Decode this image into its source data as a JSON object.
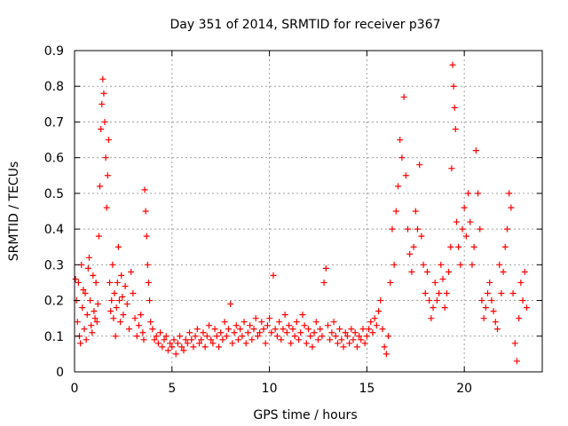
{
  "chart_data": {
    "type": "scatter",
    "title": "Day 351 of 2014, SRMTID for receiver p367",
    "xlabel": "GPS time / hours",
    "ylabel": "SRMTID / TECUs",
    "xlim": [
      0,
      24
    ],
    "ylim": [
      0,
      0.9
    ],
    "xticks": [
      0,
      5,
      10,
      15,
      20
    ],
    "yticks": [
      0,
      0.1,
      0.2,
      0.3,
      0.4,
      0.5,
      0.6,
      0.7,
      0.8,
      0.9
    ],
    "xtick_labels": [
      "0",
      "5",
      "10",
      "15",
      "20"
    ],
    "ytick_labels": [
      "0",
      "0.1",
      "0.2",
      "0.3",
      "0.4",
      "0.5",
      "0.6",
      "0.7",
      "0.8",
      "0.9"
    ],
    "grid": true,
    "marker": "+",
    "series": [
      {
        "name": "p367",
        "color": "#ff0000",
        "points": [
          [
            0.05,
            0.26
          ],
          [
            0.1,
            0.2
          ],
          [
            0.15,
            0.14
          ],
          [
            0.2,
            0.25
          ],
          [
            0.25,
            0.1
          ],
          [
            0.3,
            0.08
          ],
          [
            0.35,
            0.3
          ],
          [
            0.4,
            0.18
          ],
          [
            0.45,
            0.23
          ],
          [
            0.5,
            0.12
          ],
          [
            0.55,
            0.22
          ],
          [
            0.6,
            0.09
          ],
          [
            0.65,
            0.16
          ],
          [
            0.7,
            0.29
          ],
          [
            0.75,
            0.32
          ],
          [
            0.8,
            0.2
          ],
          [
            0.85,
            0.13
          ],
          [
            0.9,
            0.11
          ],
          [
            0.95,
            0.27
          ],
          [
            1.0,
            0.17
          ],
          [
            1.05,
            0.15
          ],
          [
            1.1,
            0.25
          ],
          [
            1.15,
            0.14
          ],
          [
            1.2,
            0.19
          ],
          [
            1.25,
            0.38
          ],
          [
            1.3,
            0.52
          ],
          [
            1.35,
            0.68
          ],
          [
            1.4,
            0.75
          ],
          [
            1.45,
            0.82
          ],
          [
            1.5,
            0.78
          ],
          [
            1.55,
            0.7
          ],
          [
            1.6,
            0.6
          ],
          [
            1.65,
            0.46
          ],
          [
            1.7,
            0.55
          ],
          [
            1.75,
            0.65
          ],
          [
            1.8,
            0.25
          ],
          [
            1.85,
            0.17
          ],
          [
            1.9,
            0.2
          ],
          [
            1.95,
            0.3
          ],
          [
            2.0,
            0.15
          ],
          [
            2.05,
            0.22
          ],
          [
            2.1,
            0.1
          ],
          [
            2.15,
            0.18
          ],
          [
            2.2,
            0.25
          ],
          [
            2.25,
            0.35
          ],
          [
            2.3,
            0.2
          ],
          [
            2.35,
            0.14
          ],
          [
            2.4,
            0.27
          ],
          [
            2.45,
            0.21
          ],
          [
            2.5,
            0.16
          ],
          [
            2.6,
            0.24
          ],
          [
            2.7,
            0.19
          ],
          [
            2.8,
            0.12
          ],
          [
            2.9,
            0.28
          ],
          [
            3.0,
            0.22
          ],
          [
            3.1,
            0.15
          ],
          [
            3.2,
            0.1
          ],
          [
            3.3,
            0.13
          ],
          [
            3.4,
            0.16
          ],
          [
            3.5,
            0.11
          ],
          [
            3.55,
            0.09
          ],
          [
            3.6,
            0.51
          ],
          [
            3.65,
            0.45
          ],
          [
            3.7,
            0.38
          ],
          [
            3.75,
            0.3
          ],
          [
            3.8,
            0.25
          ],
          [
            3.85,
            0.2
          ],
          [
            3.9,
            0.14
          ],
          [
            4.0,
            0.12
          ],
          [
            4.1,
            0.09
          ],
          [
            4.2,
            0.1
          ],
          [
            4.3,
            0.08
          ],
          [
            4.4,
            0.11
          ],
          [
            4.5,
            0.07
          ],
          [
            4.6,
            0.09
          ],
          [
            4.7,
            0.1
          ],
          [
            4.8,
            0.06
          ],
          [
            4.9,
            0.08
          ],
          [
            5.0,
            0.07
          ],
          [
            5.1,
            0.09
          ],
          [
            5.2,
            0.05
          ],
          [
            5.3,
            0.08
          ],
          [
            5.4,
            0.1
          ],
          [
            5.5,
            0.07
          ],
          [
            5.6,
            0.06
          ],
          [
            5.7,
            0.09
          ],
          [
            5.8,
            0.08
          ],
          [
            5.9,
            0.11
          ],
          [
            6.0,
            0.09
          ],
          [
            6.1,
            0.07
          ],
          [
            6.2,
            0.1
          ],
          [
            6.3,
            0.12
          ],
          [
            6.4,
            0.08
          ],
          [
            6.5,
            0.09
          ],
          [
            6.6,
            0.11
          ],
          [
            6.7,
            0.07
          ],
          [
            6.8,
            0.1
          ],
          [
            6.9,
            0.13
          ],
          [
            7.0,
            0.09
          ],
          [
            7.1,
            0.08
          ],
          [
            7.2,
            0.12
          ],
          [
            7.3,
            0.1
          ],
          [
            7.4,
            0.07
          ],
          [
            7.5,
            0.11
          ],
          [
            7.6,
            0.09
          ],
          [
            7.7,
            0.14
          ],
          [
            7.8,
            0.1
          ],
          [
            7.9,
            0.12
          ],
          [
            8.0,
            0.19
          ],
          [
            8.1,
            0.08
          ],
          [
            8.2,
            0.11
          ],
          [
            8.3,
            0.13
          ],
          [
            8.4,
            0.09
          ],
          [
            8.5,
            0.12
          ],
          [
            8.6,
            0.1
          ],
          [
            8.7,
            0.14
          ],
          [
            8.8,
            0.08
          ],
          [
            8.9,
            0.11
          ],
          [
            9.0,
            0.13
          ],
          [
            9.1,
            0.09
          ],
          [
            9.2,
            0.12
          ],
          [
            9.3,
            0.15
          ],
          [
            9.4,
            0.1
          ],
          [
            9.5,
            0.11
          ],
          [
            9.6,
            0.14
          ],
          [
            9.7,
            0.12
          ],
          [
            9.8,
            0.08
          ],
          [
            9.9,
            0.13
          ],
          [
            10.0,
            0.15
          ],
          [
            10.1,
            0.11
          ],
          [
            10.2,
            0.27
          ],
          [
            10.3,
            0.12
          ],
          [
            10.4,
            0.1
          ],
          [
            10.5,
            0.14
          ],
          [
            10.6,
            0.09
          ],
          [
            10.7,
            0.12
          ],
          [
            10.8,
            0.16
          ],
          [
            10.9,
            0.11
          ],
          [
            11.0,
            0.13
          ],
          [
            11.1,
            0.08
          ],
          [
            11.2,
            0.12
          ],
          [
            11.3,
            0.1
          ],
          [
            11.4,
            0.14
          ],
          [
            11.5,
            0.09
          ],
          [
            11.6,
            0.11
          ],
          [
            11.7,
            0.16
          ],
          [
            11.8,
            0.13
          ],
          [
            11.9,
            0.08
          ],
          [
            12.0,
            0.12
          ],
          [
            12.1,
            0.1
          ],
          [
            12.2,
            0.07
          ],
          [
            12.3,
            0.11
          ],
          [
            12.4,
            0.14
          ],
          [
            12.5,
            0.09
          ],
          [
            12.6,
            0.12
          ],
          [
            12.7,
            0.1
          ],
          [
            12.8,
            0.25
          ],
          [
            12.9,
            0.29
          ],
          [
            13.0,
            0.13
          ],
          [
            13.1,
            0.09
          ],
          [
            13.2,
            0.11
          ],
          [
            13.3,
            0.14
          ],
          [
            13.4,
            0.1
          ],
          [
            13.5,
            0.08
          ],
          [
            13.6,
            0.12
          ],
          [
            13.7,
            0.09
          ],
          [
            13.8,
            0.07
          ],
          [
            13.9,
            0.11
          ],
          [
            14.0,
            0.1
          ],
          [
            14.1,
            0.08
          ],
          [
            14.2,
            0.12
          ],
          [
            14.3,
            0.09
          ],
          [
            14.4,
            0.11
          ],
          [
            14.5,
            0.07
          ],
          [
            14.6,
            0.1
          ],
          [
            14.7,
            0.09
          ],
          [
            14.8,
            0.12
          ],
          [
            14.9,
            0.08
          ],
          [
            15.0,
            0.1
          ],
          [
            15.1,
            0.12
          ],
          [
            15.2,
            0.14
          ],
          [
            15.3,
            0.11
          ],
          [
            15.4,
            0.15
          ],
          [
            15.5,
            0.13
          ],
          [
            15.6,
            0.17
          ],
          [
            15.7,
            0.2
          ],
          [
            15.8,
            0.12
          ],
          [
            15.9,
            0.07
          ],
          [
            16.0,
            0.05
          ],
          [
            16.1,
            0.1
          ],
          [
            16.2,
            0.25
          ],
          [
            16.3,
            0.4
          ],
          [
            16.4,
            0.3
          ],
          [
            16.5,
            0.45
          ],
          [
            16.6,
            0.52
          ],
          [
            16.7,
            0.65
          ],
          [
            16.8,
            0.6
          ],
          [
            16.9,
            0.77
          ],
          [
            17.0,
            0.55
          ],
          [
            17.1,
            0.4
          ],
          [
            17.2,
            0.33
          ],
          [
            17.3,
            0.28
          ],
          [
            17.4,
            0.35
          ],
          [
            17.5,
            0.45
          ],
          [
            17.6,
            0.4
          ],
          [
            17.7,
            0.58
          ],
          [
            17.8,
            0.38
          ],
          [
            17.9,
            0.3
          ],
          [
            18.0,
            0.22
          ],
          [
            18.1,
            0.28
          ],
          [
            18.2,
            0.2
          ],
          [
            18.3,
            0.15
          ],
          [
            18.4,
            0.18
          ],
          [
            18.5,
            0.25
          ],
          [
            18.6,
            0.2
          ],
          [
            18.7,
            0.22
          ],
          [
            18.8,
            0.3
          ],
          [
            18.9,
            0.26
          ],
          [
            19.0,
            0.18
          ],
          [
            19.1,
            0.22
          ],
          [
            19.2,
            0.28
          ],
          [
            19.3,
            0.35
          ],
          [
            19.35,
            0.57
          ],
          [
            19.4,
            0.86
          ],
          [
            19.45,
            0.8
          ],
          [
            19.5,
            0.74
          ],
          [
            19.55,
            0.68
          ],
          [
            19.6,
            0.42
          ],
          [
            19.7,
            0.35
          ],
          [
            19.8,
            0.3
          ],
          [
            19.9,
            0.4
          ],
          [
            20.0,
            0.46
          ],
          [
            20.1,
            0.38
          ],
          [
            20.2,
            0.5
          ],
          [
            20.3,
            0.42
          ],
          [
            20.4,
            0.3
          ],
          [
            20.5,
            0.35
          ],
          [
            20.6,
            0.62
          ],
          [
            20.7,
            0.5
          ],
          [
            20.8,
            0.4
          ],
          [
            20.9,
            0.2
          ],
          [
            21.0,
            0.15
          ],
          [
            21.1,
            0.18
          ],
          [
            21.2,
            0.22
          ],
          [
            21.3,
            0.25
          ],
          [
            21.4,
            0.2
          ],
          [
            21.5,
            0.17
          ],
          [
            21.6,
            0.14
          ],
          [
            21.7,
            0.12
          ],
          [
            21.8,
            0.3
          ],
          [
            21.9,
            0.22
          ],
          [
            22.0,
            0.28
          ],
          [
            22.1,
            0.35
          ],
          [
            22.2,
            0.4
          ],
          [
            22.3,
            0.5
          ],
          [
            22.4,
            0.46
          ],
          [
            22.5,
            0.22
          ],
          [
            22.6,
            0.08
          ],
          [
            22.7,
            0.03
          ],
          [
            22.8,
            0.15
          ],
          [
            22.9,
            0.25
          ],
          [
            23.0,
            0.2
          ],
          [
            23.1,
            0.28
          ],
          [
            23.2,
            0.18
          ]
        ]
      }
    ]
  }
}
